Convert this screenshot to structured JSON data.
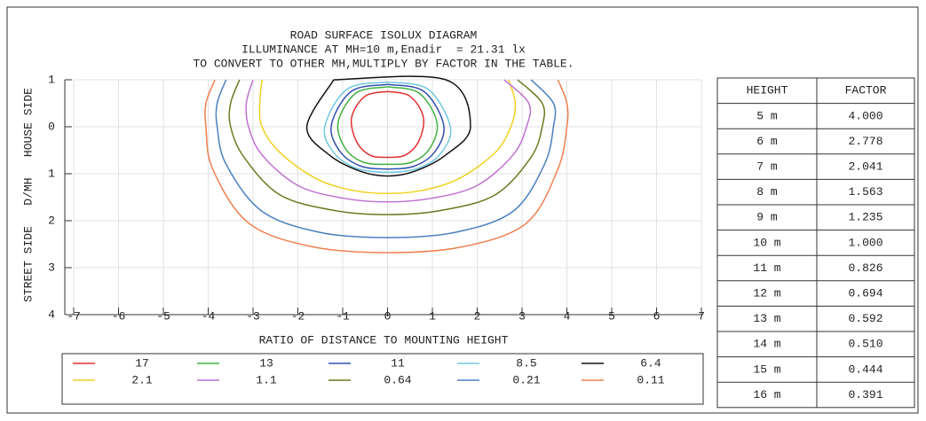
{
  "chart_data": {
    "type": "contour",
    "title_lines": [
      "ROAD SURFACE ISOLUX DIAGRAM",
      "ILLUMINANCE AT MH=10 m,Enadir  = 21.31 lx",
      "TO CONVERT TO OTHER MH,MULTIPLY BY FACTOR IN THE TABLE."
    ],
    "xlabel": "RATIO OF DISTANCE TO MOUNTING HEIGHT",
    "ylabel": "STREET SIDE   D/MH   HOUSE SIDE",
    "xlim": [
      -7,
      7
    ],
    "ylim": [
      -1,
      4
    ],
    "xticks": [
      -7,
      -6,
      -5,
      -4,
      -3,
      -2,
      -1,
      0,
      1,
      2,
      3,
      4,
      5,
      6,
      7
    ],
    "yticks": [
      {
        "value": -1,
        "label": "1"
      },
      0,
      1,
      2,
      3,
      4
    ],
    "grid": true,
    "series": [
      {
        "name": "17",
        "color": "#e03030",
        "x": [
          0,
          0.5,
          0.8,
          0.7,
          0.4,
          0,
          -0.4,
          -0.7,
          -0.8,
          -0.5,
          0
        ],
        "y": [
          -0.75,
          -0.65,
          -0.2,
          0.3,
          0.6,
          0.65,
          0.6,
          0.3,
          -0.2,
          -0.65,
          -0.75
        ]
      },
      {
        "name": "13",
        "color": "#40b040",
        "x": [
          0,
          0.7,
          1.1,
          0.95,
          0.55,
          0,
          -0.55,
          -0.95,
          -1.1,
          -0.7,
          0
        ],
        "y": [
          -0.85,
          -0.72,
          -0.1,
          0.45,
          0.75,
          0.8,
          0.75,
          0.45,
          -0.1,
          -0.72,
          -0.85
        ]
      },
      {
        "name": "11",
        "color": "#3050b0",
        "x": [
          0,
          0.8,
          1.25,
          1.08,
          0.62,
          0,
          -0.62,
          -1.08,
          -1.25,
          -0.8,
          0
        ],
        "y": [
          -0.9,
          -0.76,
          -0.05,
          0.5,
          0.83,
          0.9,
          0.83,
          0.5,
          -0.05,
          -0.76,
          -0.9
        ]
      },
      {
        "name": "8.5",
        "color": "#70c8e0",
        "x": [
          0,
          0.9,
          1.4,
          1.2,
          0.7,
          0,
          -0.7,
          -1.2,
          -1.4,
          -0.9,
          0
        ],
        "y": [
          -0.95,
          -0.8,
          0,
          0.55,
          0.88,
          0.97,
          0.88,
          0.55,
          0,
          -0.8,
          -0.95
        ]
      },
      {
        "name": "6.4",
        "color": "#111111",
        "x": [
          -1.2,
          -1.8,
          -1.3,
          -0.6,
          0,
          0.6,
          1.3,
          1.85,
          1.3,
          -1.2
        ],
        "y": [
          -1,
          0,
          0.6,
          0.95,
          1.05,
          0.95,
          0.6,
          0,
          -1,
          -1
        ]
      },
      {
        "name": "2.1",
        "color": "#f0d020",
        "x": [
          -2.8,
          -2.85,
          -2.8,
          -2.4,
          -1.6,
          -0.8,
          0,
          0.8,
          1.6,
          2.4,
          2.75,
          2.85,
          2.7
        ],
        "y": [
          -1,
          -0.5,
          0,
          0.55,
          1.1,
          1.35,
          1.42,
          1.35,
          1.1,
          0.55,
          0,
          -0.5,
          -1
        ]
      },
      {
        "name": "1.1",
        "color": "#c070d0",
        "x": [
          -3.0,
          -3.15,
          -3.1,
          -2.8,
          -2,
          -1,
          0,
          1,
          2,
          2.8,
          3.1,
          3.15,
          2.6
        ],
        "y": [
          -1,
          -0.5,
          0,
          0.6,
          1.25,
          1.52,
          1.6,
          1.52,
          1.25,
          0.6,
          0,
          -0.5,
          -1
        ]
      },
      {
        "name": "0.64",
        "color": "#6a7a20",
        "x": [
          -3.3,
          -3.5,
          -3.5,
          -3.2,
          -2.4,
          -1.2,
          0,
          1.2,
          2.4,
          3.2,
          3.45,
          3.45,
          2.9
        ],
        "y": [
          -1,
          -0.5,
          0,
          0.65,
          1.45,
          1.78,
          1.87,
          1.78,
          1.45,
          0.65,
          0,
          -0.5,
          -1
        ]
      },
      {
        "name": "0.21",
        "color": "#4a80c0",
        "x": [
          -3.6,
          -3.8,
          -3.8,
          -3.6,
          -2.8,
          -1.5,
          0,
          1.5,
          2.8,
          3.5,
          3.7,
          3.7,
          3.2
        ],
        "y": [
          -1,
          -0.5,
          0,
          0.8,
          1.8,
          2.25,
          2.36,
          2.25,
          1.8,
          0.8,
          0,
          -0.5,
          -1
        ]
      },
      {
        "name": "0.11",
        "color": "#f08050",
        "x": [
          -3.85,
          -4.05,
          -4.05,
          -3.9,
          -3.1,
          -1.7,
          0,
          1.7,
          3.1,
          3.8,
          4.0,
          4.0,
          3.8
        ],
        "y": [
          -1,
          -0.5,
          0,
          0.9,
          2.05,
          2.55,
          2.68,
          2.55,
          2.05,
          0.9,
          0,
          -0.5,
          -1
        ]
      }
    ],
    "table": {
      "header": [
        "HEIGHT",
        "FACTOR"
      ],
      "rows": [
        [
          "5 m",
          "4.000"
        ],
        [
          "6 m",
          "2.778"
        ],
        [
          "7 m",
          "2.041"
        ],
        [
          "8 m",
          "1.563"
        ],
        [
          "9 m",
          "1.235"
        ],
        [
          "10 m",
          "1.000"
        ],
        [
          "11 m",
          "0.826"
        ],
        [
          "12 m",
          "0.694"
        ],
        [
          "13 m",
          "0.592"
        ],
        [
          "14 m",
          "0.510"
        ],
        [
          "15 m",
          "0.444"
        ],
        [
          "16 m",
          "0.391"
        ]
      ]
    }
  }
}
